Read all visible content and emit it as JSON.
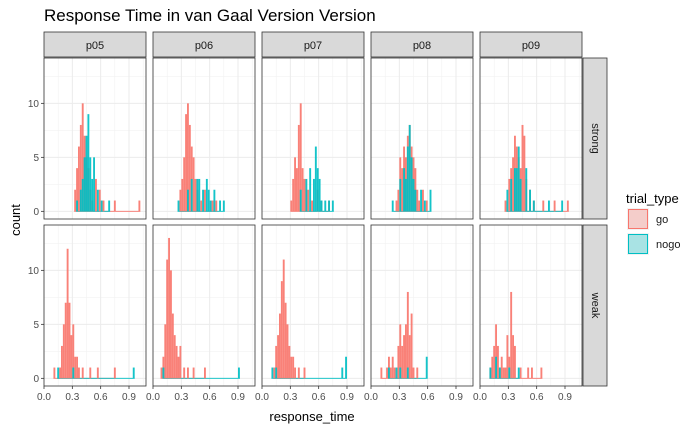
{
  "chart_data": {
    "type": "bar",
    "title": "Response Time in van Gaal Version Version",
    "xlabel": "response_time",
    "ylabel": "count",
    "xlim": [
      0,
      1.08
    ],
    "ylim": [
      0,
      14.2
    ],
    "x_ticks": [
      "0.0",
      "0.3",
      "0.6",
      "0.9"
    ],
    "y_ticks": [
      "0",
      "5",
      "10"
    ],
    "bin_width": 0.02,
    "facet_cols": [
      "p05",
      "p06",
      "p07",
      "p08",
      "p09"
    ],
    "facet_rows": [
      "strong",
      "weak"
    ],
    "grid": true,
    "legend": {
      "title": "trial_type",
      "position": "right",
      "entries": [
        {
          "name": "go",
          "color": "#F8766D"
        },
        {
          "name": "nogo",
          "color": "#00BFC4"
        }
      ]
    },
    "panels": [
      {
        "col": "p05",
        "row": "strong",
        "go": [
          [
            0.33,
            2
          ],
          [
            0.35,
            4
          ],
          [
            0.37,
            6
          ],
          [
            0.39,
            8
          ],
          [
            0.41,
            10
          ],
          [
            0.43,
            7
          ],
          [
            0.45,
            5
          ],
          [
            0.47,
            4
          ],
          [
            0.49,
            2
          ],
          [
            0.51,
            1
          ],
          [
            0.55,
            3
          ],
          [
            0.59,
            2
          ],
          [
            0.63,
            1
          ],
          [
            0.75,
            1
          ],
          [
            1.01,
            1
          ]
        ],
        "nogo": [
          [
            0.35,
            1
          ],
          [
            0.39,
            2
          ],
          [
            0.41,
            3
          ],
          [
            0.43,
            5
          ],
          [
            0.45,
            7
          ],
          [
            0.47,
            9
          ],
          [
            0.49,
            5
          ],
          [
            0.51,
            3
          ],
          [
            0.53,
            5
          ],
          [
            0.57,
            2
          ],
          [
            0.61,
            1
          ],
          [
            0.69,
            1
          ]
        ]
      },
      {
        "col": "p06",
        "row": "strong",
        "go": [
          [
            0.29,
            2
          ],
          [
            0.31,
            3
          ],
          [
            0.33,
            5
          ],
          [
            0.35,
            9
          ],
          [
            0.37,
            10
          ],
          [
            0.39,
            8
          ],
          [
            0.41,
            6
          ],
          [
            0.43,
            5
          ],
          [
            0.45,
            3
          ],
          [
            0.47,
            2
          ],
          [
            0.51,
            1
          ],
          [
            0.55,
            2
          ],
          [
            0.63,
            1
          ],
          [
            0.67,
            1
          ]
        ],
        "nogo": [
          [
            0.27,
            1
          ],
          [
            0.37,
            2
          ],
          [
            0.41,
            3
          ],
          [
            0.47,
            3
          ],
          [
            0.49,
            3
          ],
          [
            0.53,
            2
          ],
          [
            0.57,
            3
          ],
          [
            0.59,
            2
          ],
          [
            0.61,
            1
          ],
          [
            0.65,
            2
          ],
          [
            0.71,
            1
          ],
          [
            0.75,
            1
          ]
        ]
      },
      {
        "col": "p07",
        "row": "strong",
        "go": [
          [
            0.31,
            1
          ],
          [
            0.33,
            3
          ],
          [
            0.35,
            5
          ],
          [
            0.37,
            4
          ],
          [
            0.39,
            8
          ],
          [
            0.41,
            10
          ],
          [
            0.43,
            4
          ],
          [
            0.45,
            3
          ],
          [
            0.47,
            2
          ],
          [
            0.49,
            2
          ],
          [
            0.53,
            1
          ],
          [
            0.59,
            2
          ],
          [
            0.63,
            1
          ],
          [
            0.71,
            1
          ]
        ],
        "nogo": [
          [
            0.41,
            2
          ],
          [
            0.47,
            3
          ],
          [
            0.51,
            4
          ],
          [
            0.55,
            3
          ],
          [
            0.57,
            6
          ],
          [
            0.59,
            4
          ],
          [
            0.61,
            3
          ],
          [
            0.63,
            1
          ],
          [
            0.67,
            1
          ],
          [
            0.71,
            1
          ],
          [
            0.75,
            1
          ]
        ]
      },
      {
        "col": "p08",
        "row": "strong",
        "go": [
          [
            0.27,
            1
          ],
          [
            0.29,
            2
          ],
          [
            0.31,
            5
          ],
          [
            0.33,
            4
          ],
          [
            0.35,
            6
          ],
          [
            0.37,
            5
          ],
          [
            0.39,
            7
          ],
          [
            0.41,
            8
          ],
          [
            0.43,
            6
          ],
          [
            0.45,
            5
          ],
          [
            0.47,
            4
          ],
          [
            0.49,
            2
          ],
          [
            0.51,
            1
          ],
          [
            0.55,
            2
          ],
          [
            0.59,
            1
          ]
        ],
        "nogo": [
          [
            0.23,
            1
          ],
          [
            0.31,
            3
          ],
          [
            0.35,
            4
          ],
          [
            0.37,
            3
          ],
          [
            0.39,
            6
          ],
          [
            0.41,
            8
          ],
          [
            0.43,
            5
          ],
          [
            0.45,
            3
          ],
          [
            0.47,
            2
          ],
          [
            0.53,
            2
          ],
          [
            0.57,
            1
          ],
          [
            0.63,
            2
          ]
        ]
      },
      {
        "col": "p09",
        "row": "strong",
        "go": [
          [
            0.27,
            1
          ],
          [
            0.31,
            3
          ],
          [
            0.33,
            4
          ],
          [
            0.35,
            5
          ],
          [
            0.37,
            7
          ],
          [
            0.39,
            6
          ],
          [
            0.41,
            5
          ],
          [
            0.43,
            4
          ],
          [
            0.45,
            8
          ],
          [
            0.47,
            7
          ],
          [
            0.49,
            3
          ],
          [
            0.53,
            2
          ],
          [
            0.57,
            1
          ],
          [
            0.67,
            1
          ],
          [
            0.79,
            1
          ],
          [
            0.93,
            1
          ]
        ],
        "nogo": [
          [
            0.29,
            2
          ],
          [
            0.33,
            3
          ],
          [
            0.37,
            4
          ],
          [
            0.39,
            4
          ],
          [
            0.41,
            6
          ],
          [
            0.43,
            3
          ],
          [
            0.49,
            4
          ],
          [
            0.53,
            2
          ],
          [
            0.57,
            1
          ],
          [
            0.73,
            1
          ],
          [
            0.87,
            1
          ]
        ]
      },
      {
        "col": "p05",
        "row": "weak",
        "go": [
          [
            0.11,
            1
          ],
          [
            0.17,
            1
          ],
          [
            0.19,
            3
          ],
          [
            0.21,
            5
          ],
          [
            0.23,
            7
          ],
          [
            0.25,
            12
          ],
          [
            0.27,
            7
          ],
          [
            0.29,
            4
          ],
          [
            0.31,
            5
          ],
          [
            0.33,
            2
          ],
          [
            0.35,
            2
          ],
          [
            0.37,
            1
          ],
          [
            0.41,
            1
          ],
          [
            0.49,
            1
          ],
          [
            0.57,
            1
          ],
          [
            0.75,
            1
          ]
        ],
        "nogo": [
          [
            0.15,
            1
          ],
          [
            0.31,
            1
          ],
          [
            0.95,
            1
          ]
        ]
      },
      {
        "col": "p06",
        "row": "weak",
        "go": [
          [
            0.09,
            1
          ],
          [
            0.11,
            2
          ],
          [
            0.13,
            5
          ],
          [
            0.15,
            11
          ],
          [
            0.17,
            13
          ],
          [
            0.19,
            10
          ],
          [
            0.21,
            6
          ],
          [
            0.23,
            4
          ],
          [
            0.25,
            3
          ],
          [
            0.27,
            2
          ],
          [
            0.29,
            3
          ],
          [
            0.33,
            1
          ],
          [
            0.37,
            1
          ],
          [
            0.43,
            1
          ],
          [
            0.55,
            1
          ]
        ],
        "nogo": [
          [
            0.11,
            1
          ],
          [
            0.91,
            1
          ]
        ]
      },
      {
        "col": "p07",
        "row": "weak",
        "go": [
          [
            0.13,
            1
          ],
          [
            0.15,
            3
          ],
          [
            0.17,
            4
          ],
          [
            0.19,
            6
          ],
          [
            0.21,
            9
          ],
          [
            0.23,
            11
          ],
          [
            0.25,
            7
          ],
          [
            0.27,
            5
          ],
          [
            0.29,
            3
          ],
          [
            0.31,
            2
          ],
          [
            0.33,
            2
          ],
          [
            0.35,
            1
          ],
          [
            0.39,
            1
          ],
          [
            0.45,
            1
          ]
        ],
        "nogo": [
          [
            0.11,
            1
          ],
          [
            0.15,
            1
          ],
          [
            0.85,
            1
          ],
          [
            0.89,
            2
          ]
        ]
      },
      {
        "col": "p08",
        "row": "weak",
        "go": [
          [
            0.11,
            1
          ],
          [
            0.17,
            1
          ],
          [
            0.19,
            2
          ],
          [
            0.21,
            1
          ],
          [
            0.23,
            2
          ],
          [
            0.25,
            1
          ],
          [
            0.29,
            3
          ],
          [
            0.31,
            5
          ],
          [
            0.33,
            3
          ],
          [
            0.35,
            4
          ],
          [
            0.37,
            5
          ],
          [
            0.39,
            8
          ],
          [
            0.41,
            4
          ],
          [
            0.43,
            6
          ],
          [
            0.45,
            1
          ],
          [
            0.49,
            1
          ]
        ],
        "nogo": [
          [
            0.19,
            1
          ],
          [
            0.27,
            1
          ],
          [
            0.31,
            1
          ],
          [
            0.39,
            1
          ],
          [
            0.59,
            2
          ]
        ]
      },
      {
        "col": "p09",
        "row": "weak",
        "go": [
          [
            0.11,
            1
          ],
          [
            0.13,
            2
          ],
          [
            0.15,
            3
          ],
          [
            0.17,
            5
          ],
          [
            0.19,
            3
          ],
          [
            0.21,
            1
          ],
          [
            0.23,
            2
          ],
          [
            0.25,
            1
          ],
          [
            0.27,
            1
          ],
          [
            0.29,
            4
          ],
          [
            0.31,
            2
          ],
          [
            0.33,
            8
          ],
          [
            0.35,
            4
          ],
          [
            0.37,
            3
          ],
          [
            0.43,
            1
          ],
          [
            0.51,
            1
          ],
          [
            0.55,
            1
          ],
          [
            0.65,
            1
          ]
        ],
        "nogo": [
          [
            0.11,
            1
          ],
          [
            0.17,
            2
          ],
          [
            0.21,
            1
          ],
          [
            0.31,
            1
          ],
          [
            0.41,
            1
          ]
        ]
      }
    ]
  }
}
